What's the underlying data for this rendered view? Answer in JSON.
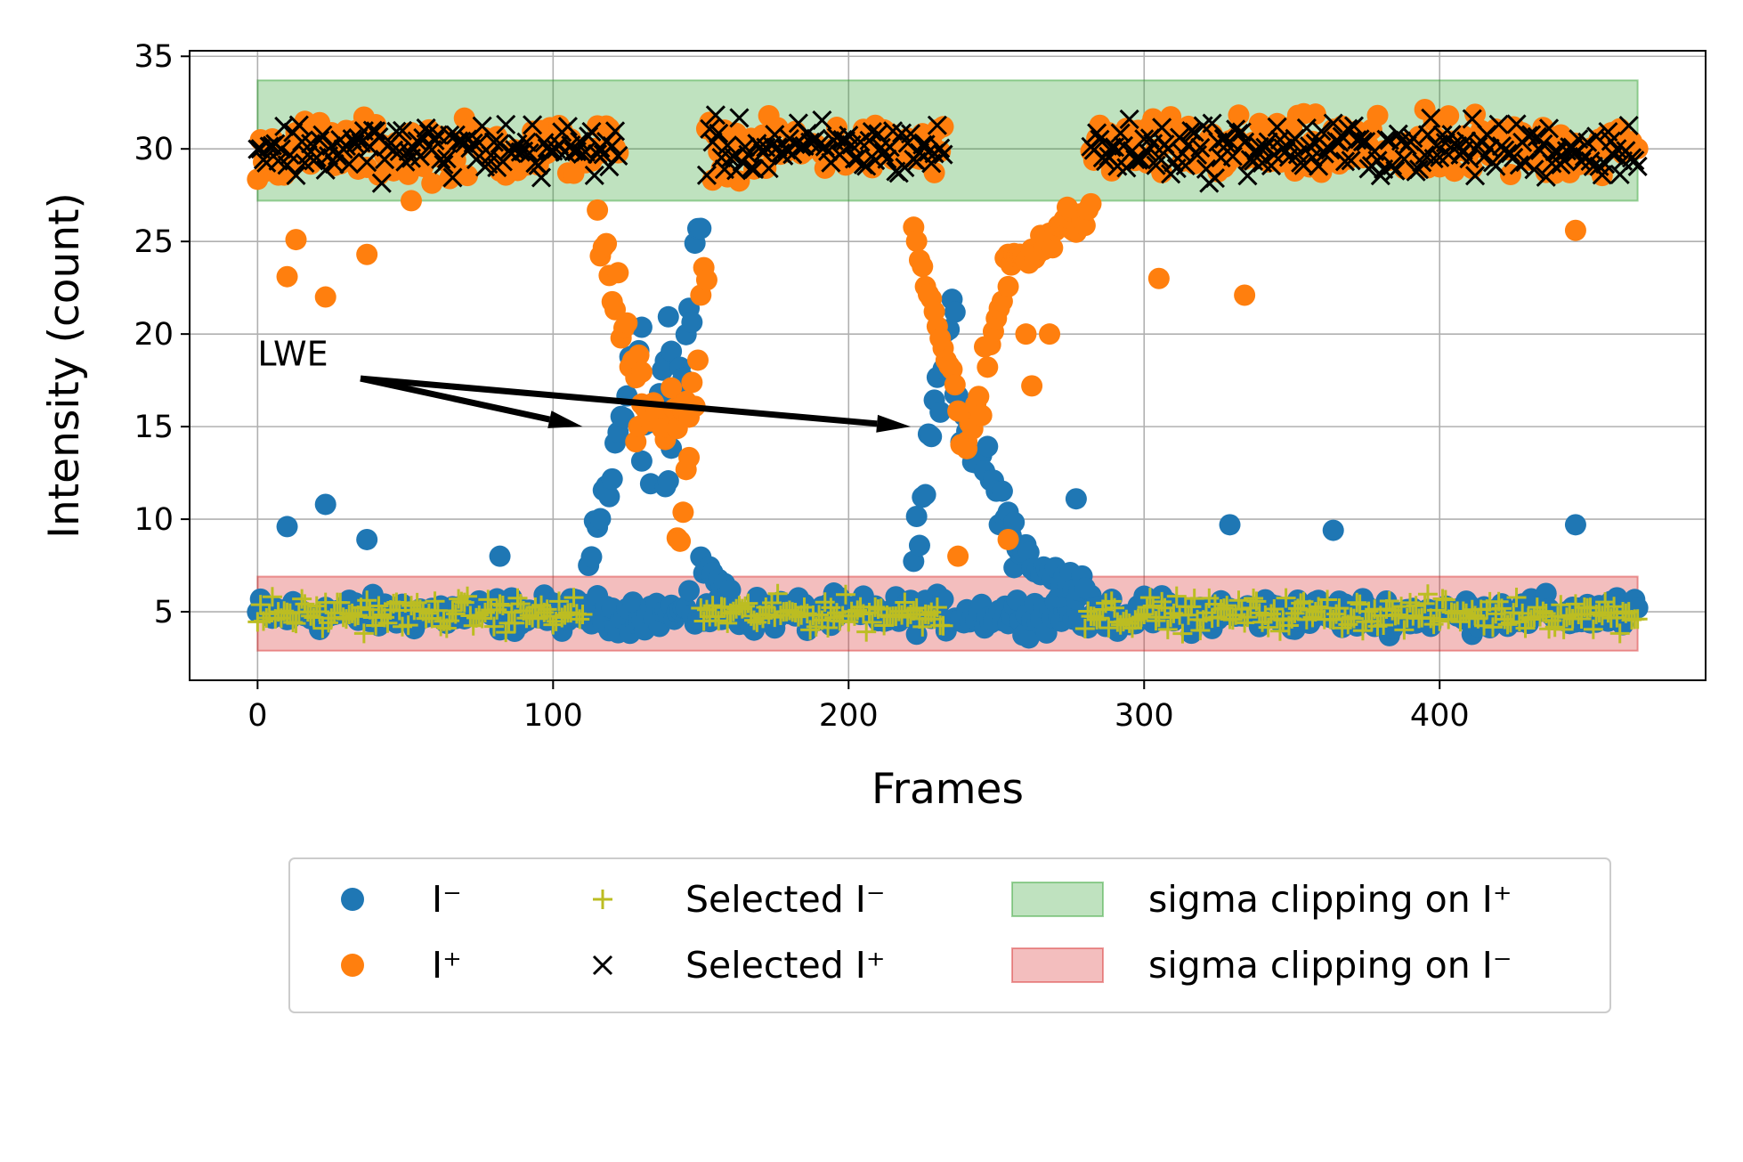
{
  "chart_data": {
    "type": "scatter",
    "title": "",
    "xlabel": "Frames",
    "ylabel": "Intensity (count)",
    "xlim": [
      -23,
      490
    ],
    "ylim": [
      1.3,
      35.3
    ],
    "xticks": [
      0,
      100,
      200,
      300,
      400
    ],
    "yticks": [
      5,
      10,
      15,
      20,
      25,
      30,
      35
    ],
    "grid": true,
    "legend_position": "bottom-center",
    "colors": {
      "i_minus": "#1f77b4",
      "i_plus": "#ff7f0e",
      "selected_i_minus": "#bcbd22",
      "selected_i_plus": "#000000",
      "band_plus": "#2ca02c",
      "band_minus": "#d62728"
    },
    "bands": [
      {
        "name": "sigma clipping on I⁺",
        "x": [
          0,
          467
        ],
        "y": [
          27.2,
          33.7
        ]
      },
      {
        "name": "sigma clipping on I⁻",
        "x": [
          0,
          467
        ],
        "y": [
          2.9,
          6.9
        ]
      }
    ],
    "series": [
      {
        "name": "I⁻",
        "marker": "circle",
        "segments": [
          {
            "x": [
              0,
              467
            ],
            "base": 4.9,
            "amp": 1.2
          },
          {
            "x": [
              112,
              130
            ],
            "from": 7.5,
            "to": 20,
            "spread": 1.8
          },
          {
            "x": [
              130,
              140
            ],
            "from": 13,
            "to": 20,
            "spread": 3.5
          },
          {
            "x": [
              138,
              150
            ],
            "from": 12,
            "to": 26,
            "spread": 2.5
          },
          {
            "x": [
              150,
              160
            ],
            "from": 8,
            "to": 6,
            "spread": 1.0
          },
          {
            "x": [
              222,
              236
            ],
            "from": 8.5,
            "to": 22,
            "spread": 2.5
          },
          {
            "x": [
              236,
              256
            ],
            "from": 16,
            "to": 10,
            "spread": 2.5
          },
          {
            "x": [
              256,
              280
            ],
            "from": 8,
            "to": 6,
            "spread": 1.5
          }
        ],
        "outliers": [
          [
            10,
            9.6
          ],
          [
            23,
            10.8
          ],
          [
            37,
            8.9
          ],
          [
            82,
            8.0
          ],
          [
            277,
            11.1
          ],
          [
            329,
            9.7
          ],
          [
            364,
            9.4
          ],
          [
            446,
            9.7
          ]
        ]
      },
      {
        "name": "I⁺",
        "marker": "circle",
        "segments": [
          {
            "x": [
              0,
              122
            ],
            "base": 30.0,
            "amp": 2.0
          },
          {
            "x": [
              152,
              232
            ],
            "base": 30.0,
            "amp": 1.8
          },
          {
            "x": [
              282,
              467
            ],
            "base": 30.0,
            "amp": 2.2
          },
          {
            "x": [
              115,
              130
            ],
            "from": 26,
            "to": 17,
            "spread": 2.5
          },
          {
            "x": [
              128,
              146
            ],
            "from": 15,
            "to": 16,
            "spread": 2.0
          },
          {
            "x": [
              142,
              152
            ],
            "from": 7,
            "to": 25,
            "spread": 3.0
          },
          {
            "x": [
              222,
              240
            ],
            "from": 26,
            "to": 14,
            "spread": 2.0
          },
          {
            "x": [
              240,
              254
            ],
            "from": 13,
            "to": 24,
            "spread": 2.5
          },
          {
            "x": [
              254,
              282
            ],
            "from": 24,
            "to": 26.5,
            "spread": 1.5
          }
        ],
        "outliers": [
          [
            10,
            23.1
          ],
          [
            13,
            25.1
          ],
          [
            23,
            22.0
          ],
          [
            37,
            24.3
          ],
          [
            52,
            27.2
          ],
          [
            254,
            8.9
          ],
          [
            260,
            20.0
          ],
          [
            262,
            17.2
          ],
          [
            268,
            20.0
          ],
          [
            305,
            23.0
          ],
          [
            334,
            22.1
          ],
          [
            446,
            25.6
          ],
          [
            237,
            8.0
          ]
        ]
      },
      {
        "name": "Selected I⁻",
        "marker": "plus",
        "x_ranges": [
          [
            0,
            110
          ],
          [
            150,
            232
          ],
          [
            280,
            467
          ]
        ],
        "base": 4.9,
        "amp": 1.1
      },
      {
        "name": "Selected I⁺",
        "marker": "x",
        "x_ranges": [
          [
            0,
            122
          ],
          [
            152,
            232
          ],
          [
            282,
            467
          ]
        ],
        "base": 30.0,
        "amp": 1.9
      }
    ],
    "annotations": [
      {
        "text": "LWE",
        "xy": [
          0,
          18.3
        ],
        "arrows_to": [
          [
            110,
            15.0
          ],
          [
            221,
            15.0
          ]
        ]
      }
    ]
  },
  "legend": {
    "items": [
      {
        "label": "I⁻",
        "marker": "circle",
        "color": "#1f77b4"
      },
      {
        "label": "I⁺",
        "marker": "circle",
        "color": "#ff7f0e"
      },
      {
        "label": "Selected I⁻",
        "marker": "plus",
        "color": "#bcbd22"
      },
      {
        "label": "Selected I⁺",
        "marker": "x",
        "color": "#000000"
      },
      {
        "label": "sigma clipping on I⁺",
        "marker": "patch",
        "color": "#2ca02c"
      },
      {
        "label": "sigma clipping on I⁻",
        "marker": "patch",
        "color": "#d62728"
      }
    ]
  }
}
